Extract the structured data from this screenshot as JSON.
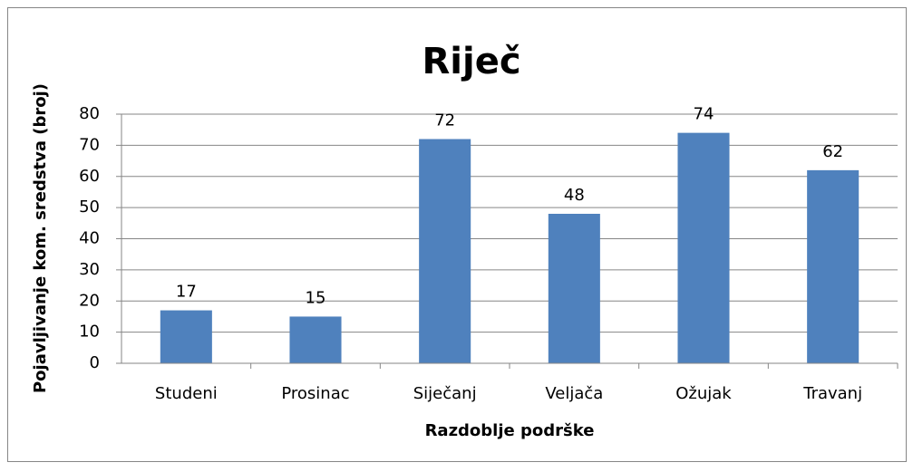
{
  "chart_data": {
    "type": "bar",
    "title": "Riječ",
    "x_label": "Razdoblje podrške",
    "y_label": "Pojavljivanje kom. sredstva (broj)",
    "categories": [
      "Studeni",
      "Prosinac",
      "Siječanj",
      "Veljača",
      "Ožujak",
      "Travanj"
    ],
    "values": [
      17,
      15,
      72,
      48,
      74,
      62
    ],
    "color": "#4f81bd",
    "ylim": [
      0,
      80
    ],
    "yticks": [
      0,
      10,
      20,
      30,
      40,
      50,
      60,
      70,
      80
    ],
    "grid": true,
    "data_labels": true
  }
}
